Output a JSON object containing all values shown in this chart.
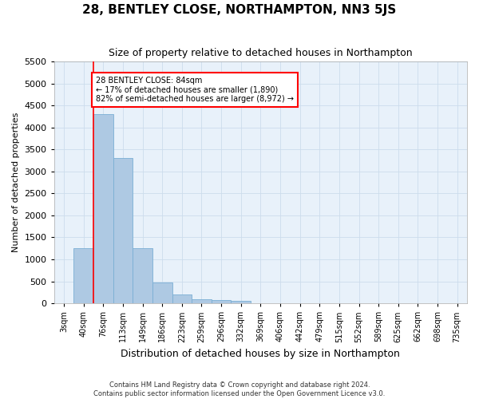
{
  "title": "28, BENTLEY CLOSE, NORTHAMPTON, NN3 5JS",
  "subtitle": "Size of property relative to detached houses in Northampton",
  "xlabel": "Distribution of detached houses by size in Northampton",
  "ylabel": "Number of detached properties",
  "footer_line1": "Contains HM Land Registry data © Crown copyright and database right 2024.",
  "footer_line2": "Contains public sector information licensed under the Open Government Licence v3.0.",
  "categories": [
    "3sqm",
    "40sqm",
    "76sqm",
    "113sqm",
    "149sqm",
    "186sqm",
    "223sqm",
    "259sqm",
    "296sqm",
    "332sqm",
    "369sqm",
    "406sqm",
    "442sqm",
    "479sqm",
    "515sqm",
    "552sqm",
    "589sqm",
    "625sqm",
    "662sqm",
    "698sqm",
    "735sqm"
  ],
  "bar_values": [
    0,
    1250,
    4300,
    3300,
    1250,
    475,
    200,
    100,
    75,
    50,
    0,
    0,
    0,
    0,
    0,
    0,
    0,
    0,
    0,
    0,
    0
  ],
  "bar_color": "#aec9e3",
  "bar_edge_color": "#7aafd4",
  "grid_color": "#ccdcec",
  "bg_color": "#e8f1fa",
  "annotation_box_text": "28 BENTLEY CLOSE: 84sqm\n← 17% of detached houses are smaller (1,890)\n82% of semi-detached houses are larger (8,972) →",
  "annotation_box_color": "white",
  "annotation_box_edge_color": "red",
  "vline_color": "red",
  "vline_x_idx": 1.5,
  "ylim_max": 5500,
  "yticks": [
    0,
    500,
    1000,
    1500,
    2000,
    2500,
    3000,
    3500,
    4000,
    4500,
    5000,
    5500
  ],
  "title_fontsize": 11,
  "subtitle_fontsize": 9,
  "ylabel_fontsize": 8,
  "xlabel_fontsize": 9
}
